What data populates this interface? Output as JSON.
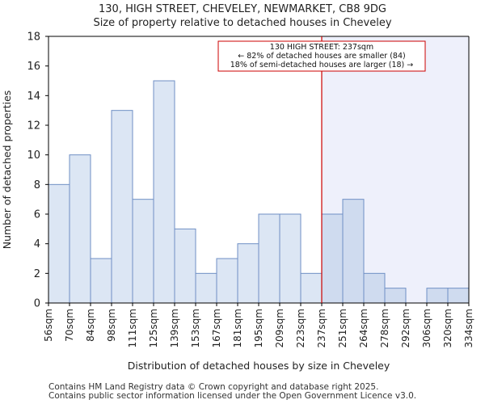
{
  "header": {
    "title_line1": "130, HIGH STREET, CHEVELEY, NEWMARKET, CB8 9DG",
    "title_line2": "Size of property relative to detached houses in Cheveley"
  },
  "chart_data": {
    "type": "bar",
    "title": "130, HIGH STREET, CHEVELEY, NEWMARKET, CB8 9DG",
    "subtitle": "Size of property relative to detached houses in Cheveley",
    "xlabel": "Distribution of detached houses by size in Cheveley",
    "ylabel": "Number of detached properties",
    "ylim": [
      0,
      18
    ],
    "yticks": [
      0,
      2,
      4,
      6,
      8,
      10,
      12,
      14,
      16,
      18
    ],
    "bin_edges": [
      "56sqm",
      "70sqm",
      "84sqm",
      "98sqm",
      "111sqm",
      "125sqm",
      "139sqm",
      "153sqm",
      "167sqm",
      "181sqm",
      "195sqm",
      "209sqm",
      "223sqm",
      "237sqm",
      "251sqm",
      "264sqm",
      "278sqm",
      "292sqm",
      "306sqm",
      "320sqm",
      "334sqm"
    ],
    "values": [
      8,
      10,
      3,
      13,
      7,
      15,
      5,
      2,
      3,
      4,
      6,
      6,
      2,
      6,
      7,
      2,
      1,
      0,
      1,
      1
    ],
    "marker": {
      "value_label": "237sqm",
      "bin_index": 13,
      "color": "#cc0000"
    },
    "annotation": {
      "line1": "130 HIGH STREET: 237sqm",
      "line2": "← 82% of detached houses are smaller (84)",
      "line3": "18% of semi-detached houses are larger (18) →"
    },
    "colors": {
      "bar_fill": "#dce6f4",
      "bar_fill_right": "#cfdbef",
      "bar_stroke": "#6f8fc5",
      "highlight_bg": "#eef0fb"
    }
  },
  "footer": {
    "line1": "Contains HM Land Registry data © Crown copyright and database right 2025.",
    "line2": "Contains public sector information licensed under the Open Government Licence v3.0."
  }
}
